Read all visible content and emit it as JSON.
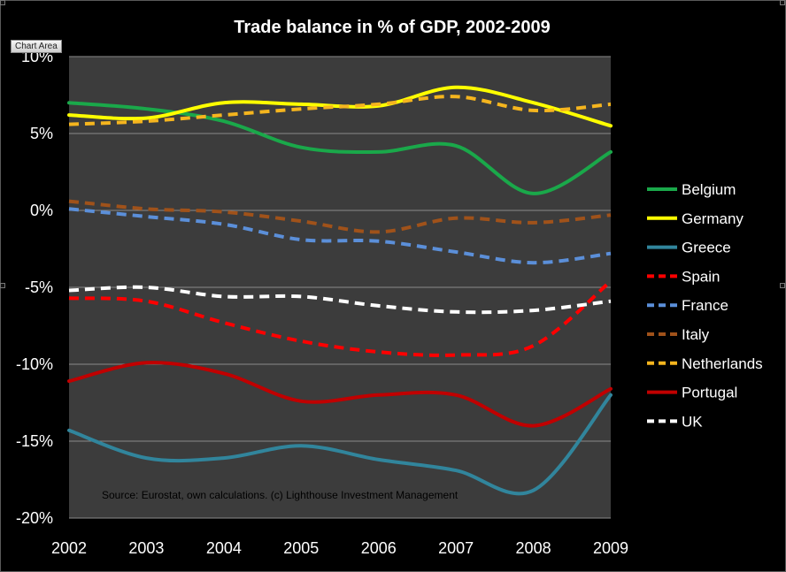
{
  "window": {
    "tooltip": "Chart Area"
  },
  "chart_data": {
    "type": "line",
    "title": "Trade balance in % of GDP, 2002-2009",
    "xlabel": "",
    "ylabel": "",
    "x": [
      2002,
      2003,
      2004,
      2005,
      2006,
      2007,
      2008,
      2009
    ],
    "x_tick_labels": [
      "2002",
      "2003",
      "2004",
      "2005",
      "2006",
      "2007",
      "2008",
      "2009"
    ],
    "ylim": [
      -20,
      10
    ],
    "y_ticks": [
      -20,
      -15,
      -10,
      -5,
      0,
      5,
      10
    ],
    "y_tick_labels": [
      "-20%",
      "-15%",
      "-10%",
      "-5%",
      "0%",
      "5%",
      "10%"
    ],
    "grid": true,
    "legend_position": "right",
    "annotation": "Source: Eurostat, own calculations. (c) Lighthouse Investment Management",
    "colors": {
      "background": "#000000",
      "plot_background": "#3c3c3c",
      "gridline": "#8a8a8a"
    },
    "series": [
      {
        "name": "Belgium",
        "color": "#1aa84a",
        "dash": "solid",
        "values": [
          7.0,
          6.6,
          5.8,
          4.1,
          3.8,
          4.2,
          1.1,
          3.8
        ]
      },
      {
        "name": "Germany",
        "color": "#ffff00",
        "dash": "solid",
        "values": [
          6.2,
          6.0,
          7.0,
          6.9,
          6.8,
          8.0,
          7.0,
          5.5
        ]
      },
      {
        "name": "Greece",
        "color": "#31859c",
        "dash": "solid",
        "values": [
          -14.3,
          -16.1,
          -16.1,
          -15.3,
          -16.2,
          -16.9,
          -18.2,
          -12.0
        ]
      },
      {
        "name": "Spain",
        "color": "#ff0000",
        "dash": "dashed",
        "values": [
          -5.7,
          -5.9,
          -7.3,
          -8.5,
          -9.2,
          -9.4,
          -8.8,
          -4.6
        ]
      },
      {
        "name": "France",
        "color": "#5b8fd9",
        "dash": "dashed",
        "values": [
          0.1,
          -0.4,
          -0.9,
          -1.9,
          -2.0,
          -2.7,
          -3.4,
          -2.8
        ]
      },
      {
        "name": "Italy",
        "color": "#a0521a",
        "dash": "dashed",
        "values": [
          0.6,
          0.1,
          -0.1,
          -0.7,
          -1.4,
          -0.5,
          -0.8,
          -0.3
        ]
      },
      {
        "name": "Netherlands",
        "color": "#f5b51e",
        "dash": "dashed",
        "values": [
          5.6,
          5.8,
          6.2,
          6.6,
          6.9,
          7.4,
          6.5,
          6.9
        ]
      },
      {
        "name": "Portugal",
        "color": "#c00000",
        "dash": "solid",
        "values": [
          -11.1,
          -9.9,
          -10.6,
          -12.4,
          -12.0,
          -12.0,
          -14.0,
          -11.6
        ]
      },
      {
        "name": "UK",
        "color": "#ffffff",
        "dash": "dashed",
        "values": [
          -5.2,
          -5.0,
          -5.6,
          -5.6,
          -6.2,
          -6.6,
          -6.5,
          -5.9
        ]
      }
    ]
  }
}
